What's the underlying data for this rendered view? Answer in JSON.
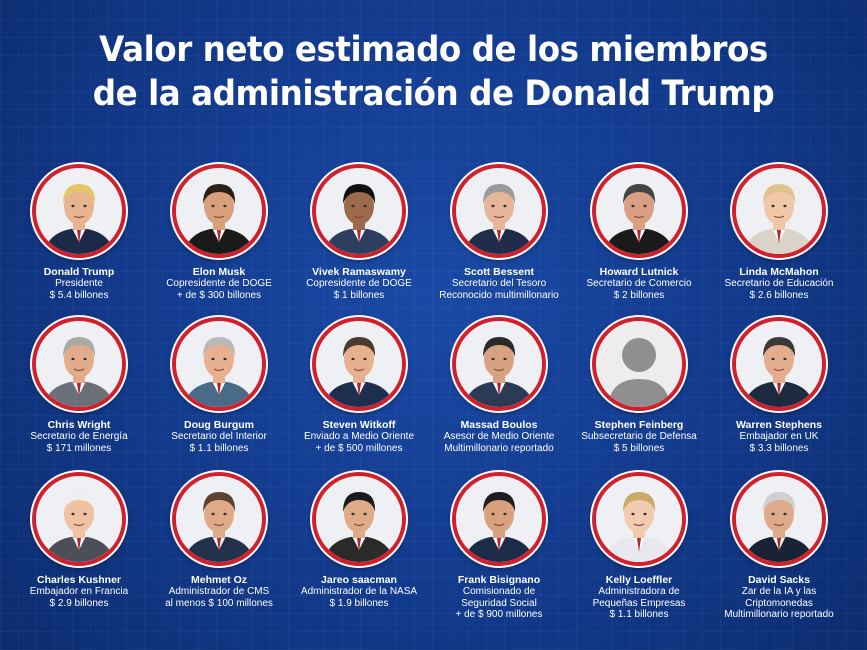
{
  "title": {
    "line1": "Valor neto estimado de los miembros",
    "line2": "de la administración de Donald Trump"
  },
  "people": [
    {
      "name": "Donald Trump",
      "lines": [
        "Presidente",
        "$ 5.4 billones"
      ],
      "photo": "portrait-icon"
    },
    {
      "name": "Elon Musk",
      "lines": [
        "Copresidente de DOGE",
        "+   de $ 300 billones"
      ],
      "photo": "portrait-icon"
    },
    {
      "name": "Vivek Ramaswamy",
      "lines": [
        "Copresidente de DOGE",
        "$ 1 billones"
      ],
      "photo": "portrait-icon"
    },
    {
      "name": "Scott Bessent",
      "lines": [
        "Secretario del Tesoro",
        "Reconocido multimillonario"
      ],
      "photo": "portrait-icon"
    },
    {
      "name": "Howard Lutnick",
      "lines": [
        "Secretario de Comercio",
        "$ 2 billones"
      ],
      "photo": "portrait-icon"
    },
    {
      "name": "Linda McMahon",
      "lines": [
        "Secretario de Educación",
        "$ 2.6 billones"
      ],
      "photo": "portrait-icon"
    },
    {
      "name": "Chris Wright",
      "lines": [
        "Secretario de Energía",
        "$ 171 millones"
      ],
      "photo": "portrait-icon"
    },
    {
      "name": "Doug Burgum",
      "lines": [
        "Secretario del Interior",
        "$ 1.1 billones"
      ],
      "photo": "portrait-icon"
    },
    {
      "name": "Steven Witkoff",
      "lines": [
        "Enviado a Medio Oriente",
        "+   de $ 500 millones"
      ],
      "photo": "portrait-icon"
    },
    {
      "name": "Massad Boulos",
      "lines": [
        "Asesor de Medio Oriente",
        "Multimillonario reportado"
      ],
      "photo": "portrait-icon"
    },
    {
      "name": "Stephen Feinberg",
      "lines": [
        "Subsecretario de Defensa",
        "$ 5 billones"
      ],
      "photo": "placeholder-avatar-icon"
    },
    {
      "name": "Warren Stephens",
      "lines": [
        "Embajador en UK",
        "$ 3.3 billones"
      ],
      "photo": "portrait-icon"
    },
    {
      "name": "Charles Kushner",
      "lines": [
        "Embajador en Francia",
        "$ 2.9 billones"
      ],
      "photo": "portrait-icon"
    },
    {
      "name": "Mehmet Oz",
      "lines": [
        "Administrador de CMS",
        "al menos $ 100 millones"
      ],
      "photo": "portrait-icon"
    },
    {
      "name": "Jareo saacman",
      "lines": [
        "Administrador de la NASA",
        "$ 1.9 billones"
      ],
      "photo": "portrait-icon"
    },
    {
      "name": "Frank Bisignano",
      "lines": [
        "Comisionado de",
        "Seguridad Social",
        "+   de $ 900 millones"
      ],
      "photo": "portrait-icon"
    },
    {
      "name": "Kelly Loeffler",
      "lines": [
        "Administradora de",
        "Pequeñas Empresas",
        "$ 1.1 billones"
      ],
      "photo": "portrait-icon"
    },
    {
      "name": "David Sacks",
      "lines": [
        "Zar de la IA y las",
        "Criptomonedas",
        "Multimillonario reportado"
      ],
      "photo": "portrait-icon"
    }
  ],
  "colors": {
    "background": "#123a8c",
    "ring": "#d11f2c",
    "text": "#ffffff"
  }
}
